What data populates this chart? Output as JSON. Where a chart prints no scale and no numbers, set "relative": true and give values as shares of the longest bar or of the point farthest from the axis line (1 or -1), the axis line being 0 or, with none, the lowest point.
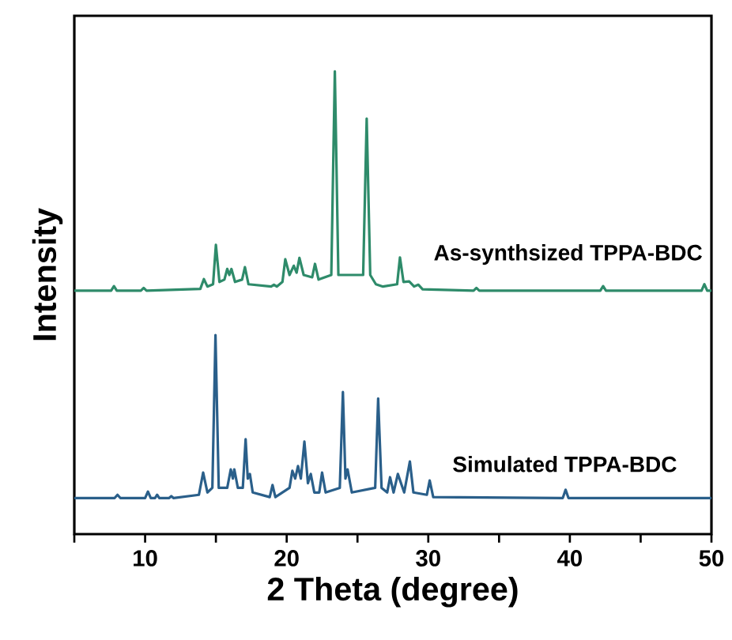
{
  "chart_data": {
    "type": "line",
    "relative": true,
    "xlabel": "2 Theta (degree)",
    "ylabel": "Intensity",
    "xlim": [
      5,
      50
    ],
    "xticks": [
      {
        "value": 5,
        "label": null
      },
      10,
      {
        "value": 15,
        "label": null
      },
      20,
      {
        "value": 25,
        "label": null
      },
      30,
      {
        "value": 35,
        "label": null
      },
      40,
      {
        "value": 45,
        "label": null
      },
      50
    ],
    "tick_labels": "x",
    "marker": "none",
    "line_style": "solid",
    "series": [
      {
        "name": "As-synthsized TPPA-BDC",
        "color": "#2e8b6a",
        "x": [
          5,
          7.6,
          7.8,
          8.0,
          9.7,
          9.9,
          10.1,
          13.9,
          14.15,
          14.4,
          14.8,
          15.0,
          15.25,
          15.6,
          15.8,
          15.95,
          16.1,
          16.35,
          16.85,
          17.05,
          17.3,
          18.9,
          19.1,
          19.3,
          19.7,
          19.9,
          20.2,
          20.5,
          20.7,
          20.9,
          21.2,
          21.8,
          22.0,
          22.25,
          23.15,
          23.4,
          23.65,
          25.4,
          25.65,
          25.9,
          26.3,
          26.8,
          27.8,
          28.0,
          28.25,
          28.65,
          29.0,
          29.3,
          29.6,
          33.2,
          33.4,
          33.6,
          42.15,
          42.35,
          42.55,
          49.3,
          49.5,
          49.7,
          50
        ],
        "values": [
          0.526,
          0.526,
          0.536,
          0.526,
          0.526,
          0.532,
          0.526,
          0.53,
          0.551,
          0.535,
          0.54,
          0.625,
          0.545,
          0.55,
          0.573,
          0.56,
          0.573,
          0.545,
          0.55,
          0.577,
          0.54,
          0.535,
          0.539,
          0.535,
          0.545,
          0.594,
          0.56,
          0.58,
          0.565,
          0.597,
          0.56,
          0.555,
          0.584,
          0.55,
          0.56,
          1.0,
          0.56,
          0.56,
          0.898,
          0.56,
          0.54,
          0.535,
          0.54,
          0.598,
          0.545,
          0.546,
          0.535,
          0.539,
          0.529,
          0.526,
          0.532,
          0.526,
          0.526,
          0.536,
          0.526,
          0.526,
          0.54,
          0.526,
          0.526
        ]
      },
      {
        "name": "Simulated TPPA-BDC",
        "color": "#2a5f8a",
        "x": [
          5,
          7.85,
          8.05,
          8.25,
          10.0,
          10.2,
          10.4,
          10.7,
          10.85,
          11.0,
          11.7,
          11.85,
          12.0,
          13.8,
          14.1,
          14.4,
          14.75,
          14.97,
          15.2,
          15.8,
          16.05,
          16.2,
          16.3,
          16.55,
          16.9,
          17.1,
          17.25,
          17.4,
          17.6,
          18.8,
          19.0,
          19.2,
          20.2,
          20.4,
          20.6,
          20.8,
          21.0,
          21.25,
          21.5,
          21.7,
          21.95,
          22.3,
          22.5,
          22.75,
          23.75,
          23.97,
          24.15,
          24.3,
          24.6,
          26.25,
          26.46,
          26.7,
          27.1,
          27.3,
          27.55,
          27.85,
          28.3,
          28.7,
          28.95,
          29.9,
          30.1,
          30.35,
          39.5,
          39.7,
          39.9,
          50
        ],
        "values": [
          0.078,
          0.078,
          0.085,
          0.078,
          0.078,
          0.092,
          0.078,
          0.078,
          0.085,
          0.078,
          0.078,
          0.082,
          0.078,
          0.085,
          0.133,
          0.09,
          0.1,
          0.43,
          0.1,
          0.1,
          0.14,
          0.12,
          0.14,
          0.1,
          0.1,
          0.205,
          0.12,
          0.13,
          0.09,
          0.08,
          0.106,
          0.08,
          0.1,
          0.137,
          0.12,
          0.147,
          0.12,
          0.2,
          0.11,
          0.13,
          0.09,
          0.09,
          0.133,
          0.09,
          0.1,
          0.307,
          0.12,
          0.14,
          0.09,
          0.1,
          0.293,
          0.1,
          0.09,
          0.123,
          0.09,
          0.13,
          0.09,
          0.157,
          0.09,
          0.085,
          0.116,
          0.08,
          0.078,
          0.096,
          0.078,
          0.078
        ]
      }
    ]
  }
}
